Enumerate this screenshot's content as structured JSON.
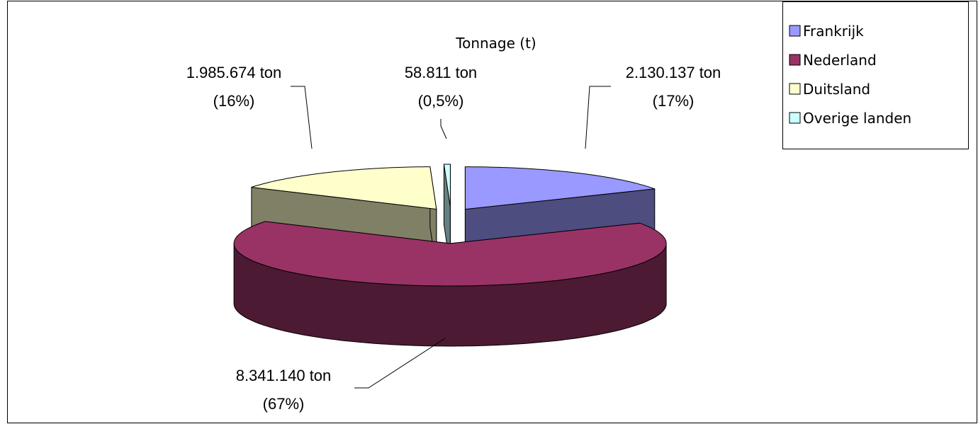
{
  "chart_data": {
    "type": "pie3d",
    "title": "Tonnage (t)",
    "categories": [
      "Frankrijk",
      "Nederland",
      "Duitsland",
      "Overige landen"
    ],
    "values": [
      2130137,
      8341140,
      1985674,
      58811
    ],
    "value_labels": [
      "2.130.137 ton",
      "8.341.140 ton",
      "1.985.674 ton",
      "58.811 ton"
    ],
    "percent_labels": [
      "(17%)",
      "(67%)",
      "(16%)",
      "(0,5%)"
    ],
    "colors": [
      "#9999ff",
      "#993366",
      "#ffffcc",
      "#ccffff"
    ],
    "legend": "top-right"
  }
}
